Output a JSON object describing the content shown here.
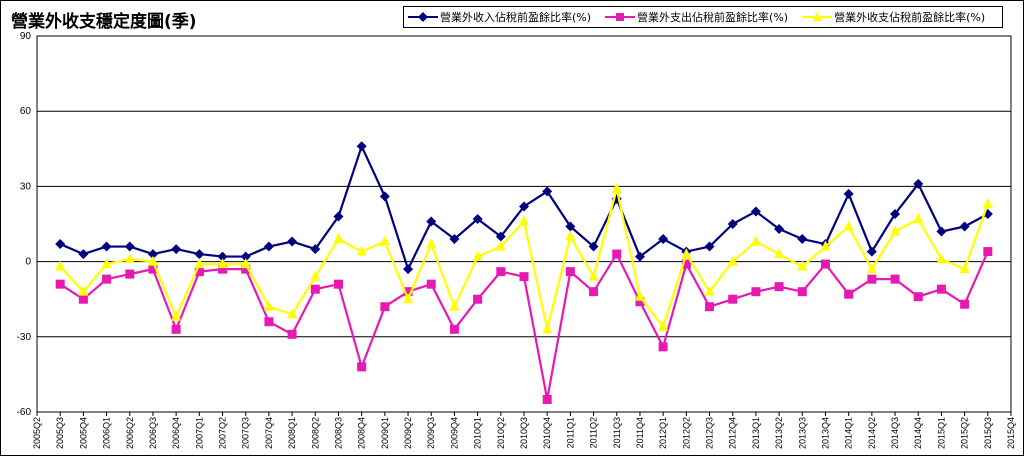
{
  "chart_data": {
    "type": "line",
    "title": "營業外收支穩定度圖(季)",
    "categories": [
      "2005Q3",
      "2005Q4",
      "2006Q1",
      "2006Q2",
      "2006Q3",
      "2006Q4",
      "2007Q1",
      "2007Q2",
      "2007Q3",
      "2007Q4",
      "2008Q1",
      "2008Q2",
      "2008Q3",
      "2008Q4",
      "2009Q1",
      "2009Q2",
      "2009Q3",
      "2009Q4",
      "2010Q1",
      "2010Q2",
      "2010Q3",
      "2010Q4",
      "2011Q1",
      "2011Q2",
      "2011Q3",
      "2011Q4",
      "2012Q1",
      "2012Q2",
      "2012Q3",
      "2012Q4",
      "2013Q1",
      "2013Q2",
      "2013Q3",
      "2013Q4",
      "2014Q1",
      "2014Q2",
      "2014Q3",
      "2014Q4",
      "2015Q1",
      "2015Q2",
      "2015Q3"
    ],
    "x_tick_labels": [
      "2005Q2",
      "2005Q3",
      "2005Q4",
      "2006Q1",
      "2006Q2",
      "2006Q3",
      "2006Q4",
      "2007Q1",
      "2007Q2",
      "2007Q3",
      "2007Q4",
      "2008Q1",
      "2008Q2",
      "2008Q3",
      "2008Q4",
      "2009Q1",
      "2009Q2",
      "2009Q3",
      "2009Q4",
      "2010Q1",
      "2010Q2",
      "2010Q3",
      "2010Q4",
      "2011Q1",
      "2011Q2",
      "2011Q3",
      "2011Q4",
      "2012Q1",
      "2012Q2",
      "2012Q3",
      "2012Q4",
      "2013Q1",
      "2013Q2",
      "2013Q3",
      "2013Q4",
      "2014Q1",
      "2014Q2",
      "2014Q3",
      "2014Q4",
      "2015Q1",
      "2015Q2",
      "2015Q3",
      "2015Q4"
    ],
    "y_ticks": [
      90,
      60,
      30,
      0,
      -30,
      -60
    ],
    "ylim": [
      -60,
      90
    ],
    "grid": "horizontal",
    "legend_position": "top-right",
    "series": [
      {
        "name": "營業外收入佔稅前盈餘比率(%)",
        "color": "#000080",
        "marker": "diamond",
        "values": [
          7,
          3,
          6,
          6,
          3,
          5,
          3,
          2,
          2,
          6,
          8,
          5,
          18,
          46,
          26,
          -3,
          16,
          9,
          17,
          10,
          22,
          28,
          14,
          6,
          25,
          2,
          9,
          4,
          6,
          15,
          20,
          13,
          9,
          7,
          27,
          4,
          19,
          31,
          12,
          14,
          19
        ]
      },
      {
        "name": "營業外支出佔稅前盈餘比率(%)",
        "color": "#e619b3",
        "marker": "square",
        "values": [
          -9,
          -15,
          -7,
          -5,
          -3,
          -27,
          -4,
          -3,
          -3,
          -24,
          -29,
          -11,
          -9,
          -42,
          -18,
          -12,
          -9,
          -27,
          -15,
          -4,
          -6,
          -55,
          -4,
          -12,
          3,
          -16,
          -34,
          -1,
          -18,
          -15,
          -12,
          -10,
          -12,
          -1,
          -13,
          -7,
          -7,
          -14,
          -11,
          -17,
          4
        ]
      },
      {
        "name": "營業外收支佔稅前盈餘比率(%)",
        "color": "#ffff00",
        "marker": "triangle",
        "values": [
          -2,
          -12,
          -1,
          1,
          0,
          -22,
          -1,
          -1,
          -1,
          -18,
          -21,
          -6,
          9,
          4,
          8,
          -15,
          7,
          -18,
          2,
          6,
          16,
          -27,
          10,
          -6,
          29,
          -14,
          -26,
          3,
          -12,
          0,
          8,
          3,
          -2,
          6,
          14,
          -3,
          12,
          17,
          1,
          -3,
          23
        ]
      }
    ]
  }
}
